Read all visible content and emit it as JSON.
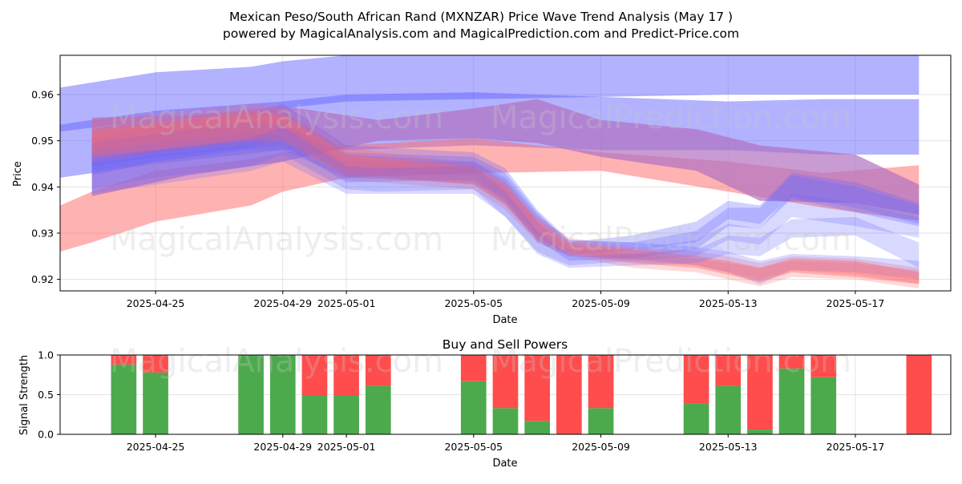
{
  "title_line1": "Mexican Peso/South African Rand (MXNZAR) Price Wave Trend Analysis (May 17 )",
  "title_line2": "powered by MagicalAnalysis.com and MagicalPrediction.com and Predict-Price.com",
  "watermarks": [
    "MagicalAnalysis.com",
    "MagicalPrediction.com"
  ],
  "colors": {
    "blue_band": "#6666ff",
    "red_band": "#ff6666",
    "purple_band": "#b070c0",
    "buy": "#4caa4c",
    "sell": "#ff4c4c"
  },
  "chart_data": [
    {
      "type": "area",
      "xlabel": "Date",
      "ylabel": "Price",
      "x_ticks": [
        "2025-04-25",
        "2025-04-29",
        "2025-05-01",
        "2025-05-05",
        "2025-05-09",
        "2025-05-13",
        "2025-05-17"
      ],
      "y_ticks": [
        "0.92",
        "0.93",
        "0.94",
        "0.95",
        "0.96"
      ],
      "xlim": [
        "2025-04-22",
        "2025-05-20"
      ],
      "ylim": [
        0.9175,
        0.9685
      ],
      "grid": true,
      "series": [
        {
          "color": "blue",
          "opacity": 0.5,
          "x": [
            "2025-04-22",
            "2025-04-25",
            "2025-04-28",
            "2025-04-29",
            "2025-05-01",
            "2025-05-05",
            "2025-05-09",
            "2025-05-13",
            "2025-05-19"
          ],
          "upper": [
            0.9615,
            0.9648,
            0.966,
            0.9672,
            0.9685,
            0.9685,
            0.9685,
            0.9685,
            0.9685
          ],
          "lower": [
            0.952,
            0.9545,
            0.9558,
            0.957,
            0.9585,
            0.959,
            0.9595,
            0.96,
            0.96
          ]
        },
        {
          "color": "blue",
          "opacity": 0.5,
          "x": [
            "2025-04-22",
            "2025-04-25",
            "2025-04-29",
            "2025-05-01",
            "2025-05-05",
            "2025-05-09",
            "2025-05-13",
            "2025-05-16",
            "2025-05-19"
          ],
          "upper": [
            0.9535,
            0.9565,
            0.9585,
            0.96,
            0.9605,
            0.9595,
            0.9585,
            0.959,
            0.959
          ],
          "lower": [
            0.942,
            0.945,
            0.948,
            0.948,
            0.949,
            0.948,
            0.948,
            0.947,
            0.947
          ]
        },
        {
          "color": "red",
          "opacity": 0.5,
          "x": [
            "2025-04-22",
            "2025-04-23",
            "2025-04-25",
            "2025-04-28",
            "2025-04-29",
            "2025-05-01",
            "2025-05-05",
            "2025-05-09",
            "2025-05-13",
            "2025-05-16",
            "2025-05-19"
          ],
          "upper": [
            0.936,
            0.939,
            0.9435,
            0.946,
            0.9475,
            0.949,
            0.9505,
            0.9475,
            0.9455,
            0.943,
            0.9447
          ],
          "lower": [
            0.926,
            0.928,
            0.9325,
            0.936,
            0.939,
            0.942,
            0.943,
            0.9435,
            0.939,
            0.9355,
            0.9327
          ]
        },
        {
          "color": "purple",
          "opacity": 0.7,
          "x": [
            "2025-04-23",
            "2025-04-26",
            "2025-04-29",
            "2025-05-02",
            "2025-05-05",
            "2025-05-07",
            "2025-05-09",
            "2025-05-12",
            "2025-05-14",
            "2025-05-17",
            "2025-05-19"
          ],
          "upper": [
            0.955,
            0.9555,
            0.9575,
            0.9545,
            0.957,
            0.959,
            0.9545,
            0.9525,
            0.949,
            0.947,
            0.9405
          ],
          "lower": [
            0.938,
            0.9425,
            0.9455,
            0.95,
            0.9505,
            0.9495,
            0.9465,
            0.9435,
            0.937,
            0.9365,
            0.934
          ]
        },
        {
          "color": "blue",
          "opacity": 0.3,
          "x": [
            "2025-04-23",
            "2025-04-25",
            "2025-04-28",
            "2025-04-29",
            "2025-05-01",
            "2025-05-05",
            "2025-05-06",
            "2025-05-07",
            "2025-05-08",
            "2025-05-10",
            "2025-05-12",
            "2025-05-13",
            "2025-05-14",
            "2025-05-15",
            "2025-05-17",
            "2025-05-19"
          ],
          "upper": [
            0.9505,
            0.9535,
            0.956,
            0.958,
            0.949,
            0.9475,
            0.944,
            0.935,
            0.9285,
            0.928,
            0.9305,
            0.9355,
            0.9355,
            0.9425,
            0.94,
            0.936
          ],
          "lower": [
            0.9425,
            0.9455,
            0.9485,
            0.951,
            0.9425,
            0.9425,
            0.937,
            0.9285,
            0.924,
            0.9245,
            0.9265,
            0.9315,
            0.931,
            0.9375,
            0.9345,
            0.9315
          ]
        },
        {
          "color": "blue",
          "opacity": 0.3,
          "x": [
            "2025-04-23",
            "2025-04-25",
            "2025-04-28",
            "2025-04-29",
            "2025-05-01",
            "2025-05-05",
            "2025-05-06",
            "2025-05-07",
            "2025-05-08",
            "2025-05-10",
            "2025-05-12",
            "2025-05-13",
            "2025-05-14",
            "2025-05-15",
            "2025-05-17",
            "2025-05-19"
          ],
          "upper": [
            0.9525,
            0.9545,
            0.9565,
            0.9565,
            0.9475,
            0.9465,
            0.943,
            0.9345,
            0.928,
            0.9295,
            0.9325,
            0.937,
            0.936,
            0.943,
            0.941,
            0.9365
          ],
          "lower": [
            0.9445,
            0.9465,
            0.9485,
            0.949,
            0.941,
            0.9415,
            0.9365,
            0.928,
            0.925,
            0.9265,
            0.928,
            0.933,
            0.932,
            0.938,
            0.9355,
            0.932
          ]
        },
        {
          "color": "blue",
          "opacity": 0.25,
          "x": [
            "2025-04-23",
            "2025-04-25",
            "2025-04-28",
            "2025-04-29",
            "2025-05-01",
            "2025-05-05",
            "2025-05-06",
            "2025-05-07",
            "2025-05-08",
            "2025-05-10",
            "2025-05-12",
            "2025-05-13",
            "2025-05-14",
            "2025-05-15",
            "2025-05-17",
            "2025-05-19"
          ],
          "upper": [
            0.9475,
            0.9495,
            0.9525,
            0.9535,
            0.9455,
            0.9455,
            0.941,
            0.9325,
            0.9265,
            0.9265,
            0.9285,
            0.932,
            0.931,
            0.9385,
            0.9365,
            0.9335
          ],
          "lower": [
            0.9385,
            0.9405,
            0.9435,
            0.9455,
            0.9385,
            0.9385,
            0.9335,
            0.926,
            0.923,
            0.924,
            0.925,
            0.9285,
            0.9275,
            0.9335,
            0.9315,
            0.929
          ]
        },
        {
          "color": "red",
          "opacity": 0.25,
          "x": [
            "2025-04-23",
            "2025-04-25",
            "2025-04-28",
            "2025-04-29",
            "2025-05-01",
            "2025-05-05",
            "2025-05-06",
            "2025-05-07",
            "2025-05-08",
            "2025-05-10",
            "2025-05-12",
            "2025-05-13",
            "2025-05-14",
            "2025-05-15",
            "2025-05-17",
            "2025-05-19"
          ],
          "upper": [
            0.9515,
            0.9535,
            0.9555,
            0.955,
            0.9465,
            0.9435,
            0.94,
            0.932,
            0.9275,
            0.9255,
            0.9245,
            0.9235,
            0.9225,
            0.924,
            0.9235,
            0.922
          ],
          "lower": [
            0.945,
            0.947,
            0.949,
            0.949,
            0.9415,
            0.9395,
            0.935,
            0.928,
            0.925,
            0.9225,
            0.9215,
            0.92,
            0.9185,
            0.9205,
            0.92,
            0.918
          ]
        },
        {
          "color": "red",
          "opacity": 0.25,
          "x": [
            "2025-04-23",
            "2025-04-25",
            "2025-04-28",
            "2025-04-29",
            "2025-05-01",
            "2025-05-05",
            "2025-05-06",
            "2025-05-07",
            "2025-05-08",
            "2025-05-10",
            "2025-05-12",
            "2025-05-13",
            "2025-05-14",
            "2025-05-15",
            "2025-05-17",
            "2025-05-19"
          ],
          "upper": [
            0.9545,
            0.956,
            0.958,
            0.9575,
            0.9485,
            0.945,
            0.9415,
            0.9335,
            0.929,
            0.927,
            0.926,
            0.925,
            0.9235,
            0.925,
            0.9245,
            0.9225
          ],
          "lower": [
            0.948,
            0.9495,
            0.9515,
            0.951,
            0.943,
            0.9405,
            0.9365,
            0.929,
            0.926,
            0.924,
            0.923,
            0.9215,
            0.92,
            0.922,
            0.921,
            0.919
          ]
        },
        {
          "color": "blue",
          "opacity": 0.25,
          "x": [
            "2025-04-23",
            "2025-04-25",
            "2025-04-28",
            "2025-04-29",
            "2025-05-01",
            "2025-05-05",
            "2025-05-06",
            "2025-05-07",
            "2025-05-08",
            "2025-05-10",
            "2025-05-12",
            "2025-05-13",
            "2025-05-14",
            "2025-05-15",
            "2025-05-17",
            "2025-05-19"
          ],
          "upper": [
            0.9495,
            0.9515,
            0.954,
            0.9535,
            0.947,
            0.9455,
            0.942,
            0.934,
            0.9285,
            0.928,
            0.927,
            0.926,
            0.924,
            0.9255,
            0.925,
            0.924
          ],
          "lower": [
            0.9435,
            0.9455,
            0.948,
            0.948,
            0.942,
            0.941,
            0.9375,
            0.9295,
            0.925,
            0.9245,
            0.923,
            0.9215,
            0.919,
            0.922,
            0.9215,
            0.92
          ]
        },
        {
          "color": "red",
          "opacity": 0.4,
          "x": [
            "2025-04-23",
            "2025-04-25",
            "2025-04-28",
            "2025-04-29",
            "2025-05-01",
            "2025-05-05",
            "2025-05-06",
            "2025-05-07",
            "2025-05-08",
            "2025-05-10",
            "2025-05-12",
            "2025-05-13",
            "2025-05-14",
            "2025-05-15",
            "2025-05-17",
            "2025-05-19"
          ],
          "upper": [
            0.9525,
            0.954,
            0.9565,
            0.956,
            0.947,
            0.9445,
            0.9405,
            0.933,
            0.928,
            0.9265,
            0.925,
            0.924,
            0.9225,
            0.9245,
            0.924,
            0.9215
          ],
          "lower": [
            0.9465,
            0.948,
            0.95,
            0.95,
            0.9425,
            0.9405,
            0.936,
            0.9285,
            0.9255,
            0.9235,
            0.9225,
            0.921,
            0.9195,
            0.9215,
            0.9205,
            0.919
          ]
        },
        {
          "color": "blue",
          "opacity": 0.25,
          "x": [
            "2025-04-23",
            "2025-04-25",
            "2025-04-28",
            "2025-04-29",
            "2025-05-01",
            "2025-05-02",
            "2025-05-05",
            "2025-05-06",
            "2025-05-07",
            "2025-05-08",
            "2025-05-10",
            "2025-05-12",
            "2025-05-13",
            "2025-05-14",
            "2025-05-15",
            "2025-05-17",
            "2025-05-19"
          ],
          "upper": [
            0.9455,
            0.948,
            0.9505,
            0.953,
            0.9445,
            0.944,
            0.9445,
            0.939,
            0.9305,
            0.925,
            0.9255,
            0.9265,
            0.9295,
            0.929,
            0.933,
            0.9335,
            0.928
          ],
          "lower": [
            0.9395,
            0.942,
            0.9445,
            0.947,
            0.9395,
            0.939,
            0.9395,
            0.9335,
            0.9255,
            0.9225,
            0.923,
            0.9235,
            0.9255,
            0.925,
            0.929,
            0.9295,
            0.9225
          ]
        }
      ]
    },
    {
      "type": "bar",
      "title": "Buy and Sell Powers",
      "xlabel": "Date",
      "ylabel": "Signal Strength",
      "x_ticks": [
        "2025-04-25",
        "2025-04-29",
        "2025-05-01",
        "2025-05-05",
        "2025-05-09",
        "2025-05-13",
        "2025-05-17"
      ],
      "y_ticks": [
        "0.0",
        "0.5",
        "1.0"
      ],
      "xlim": [
        "2025-04-22",
        "2025-05-20"
      ],
      "ylim": [
        0,
        1
      ],
      "categories": [
        "2025-04-24",
        "2025-04-25",
        "2025-04-28",
        "2025-04-29",
        "2025-04-30",
        "2025-05-01",
        "2025-05-02",
        "2025-05-05",
        "2025-05-06",
        "2025-05-07",
        "2025-05-08",
        "2025-05-09",
        "2025-05-12",
        "2025-05-13",
        "2025-05-14",
        "2025-05-15",
        "2025-05-16",
        "2025-05-19"
      ],
      "series": [
        {
          "name": "buy",
          "values": [
            0.88,
            0.78,
            1.0,
            1.0,
            0.49,
            0.49,
            0.61,
            0.67,
            0.33,
            0.17,
            0.0,
            0.33,
            0.39,
            0.61,
            0.06,
            0.83,
            0.72,
            0.0
          ]
        },
        {
          "name": "sell",
          "values": [
            0.12,
            0.22,
            0.0,
            0.0,
            0.51,
            0.51,
            0.39,
            0.33,
            0.67,
            0.83,
            1.0,
            0.67,
            0.61,
            0.39,
            0.94,
            0.17,
            0.28,
            1.0
          ]
        }
      ]
    }
  ]
}
